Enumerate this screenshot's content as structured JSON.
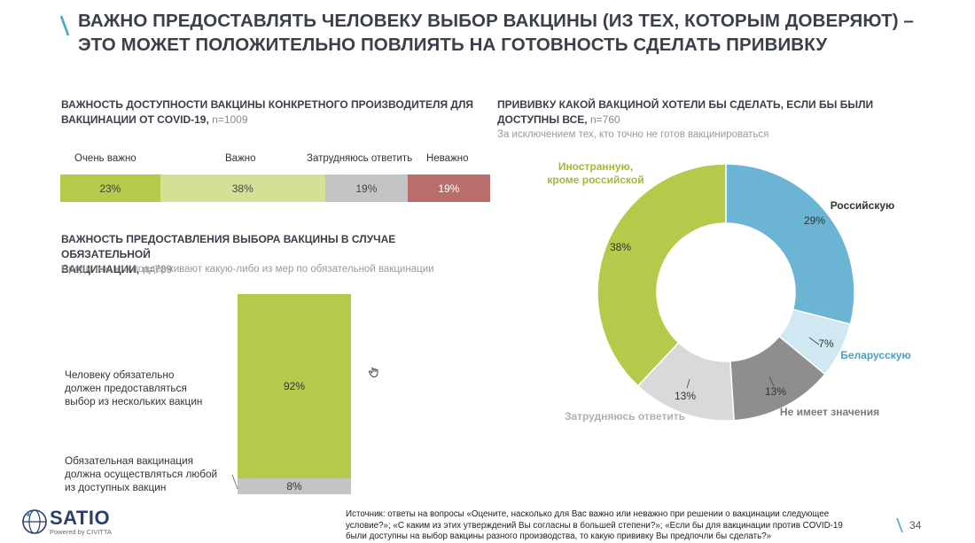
{
  "page": {
    "title_line1": "ВАЖНО ПРЕДОСТАВЛЯТЬ ЧЕЛОВЕКУ ВЫБОР ВАКЦИНЫ (ИЗ ТЕХ, КОТОРЫМ ДОВЕРЯЮТ) –",
    "title_line2": "ЭТО МОЖЕТ ПОЛОЖИТЕЛЬНО ПОВЛИЯТЬ НА ГОТОВНОСТЬ СДЕЛАТЬ ПРИВИВКУ",
    "accent_color": "#4aa6c8",
    "source_line1": "Источник: ответы на вопросы «Оцените, насколько для Вас важно или неважно при решении о вакцинации следующее",
    "source_line2": "условие?»; «С каким из этих утверждений Вы согласны в большей степени?»; «Если бы для вакцинации против COVID-19",
    "source_line3": "были доступны на выбор вакцины разного производства, то какую прививку Вы предпочли бы сделать?»",
    "page_number": "34",
    "logo_text": "SATIO",
    "logo_sub": "Powered by CIVITTA",
    "hand_icon": "hand-pointer-icon"
  },
  "chart_data": [
    {
      "type": "bar",
      "orientation": "horizontal-stacked",
      "title": "ВАЖНОСТЬ ДОСТУПНОСТИ ВАКЦИНЫ КОНКРЕТНОГО ПРОИЗВОДИТЕЛЯ ДЛЯ ВАКЦИНАЦИИ ОТ COVID-19,",
      "title_line1": "ВАЖНОСТЬ ДОСТУПНОСТИ ВАКЦИНЫ КОНКРЕТНОГО ПРОИЗВОДИТЕЛЯ ДЛЯ",
      "title_line2": "ВАКЦИНАЦИИ ОТ COVID-19,",
      "n": "n=1009",
      "categories": [
        "Очень важно",
        "Важно",
        "Затрудняюсь ответить",
        "Неважно"
      ],
      "values": [
        23,
        38,
        19,
        19
      ],
      "value_labels": [
        "23%",
        "38%",
        "19%",
        "19%"
      ],
      "colors": [
        "#b5c94a",
        "#d3e096",
        "#c4c4c4",
        "#b86f6c"
      ]
    },
    {
      "type": "bar",
      "orientation": "vertical-stacked",
      "title": "ВАЖНОСТЬ ПРЕДОСТАВЛЕНИЯ ВЫБОРА ВАКЦИНЫ В СЛУЧАЕ ОБЯЗАТЕЛЬНОЙ ВАКЦИНАЦИИ,",
      "title_line1": "ВАЖНОСТЬ ПРЕДОСТАВЛЕНИЯ ВЫБОРА ВАКЦИНЫ В СЛУЧАЕ ОБЯЗАТЕЛЬНОЙ",
      "title_line2": "ВАКЦИНАЦИИ,",
      "n": "n=789",
      "subtitle": "Среди тех, кто поддерживают какую-либо из мер по обязательной вакцинации",
      "categories": [
        "Человеку обязательно должен предоставляться выбор из нескольких вакцин",
        "Обязательная вакцинация должна осуществляться любой из доступных вакцин"
      ],
      "category_lines": [
        [
          "Человеку обязательно",
          "должен предоставляться",
          "выбор из нескольких вакцин"
        ],
        [
          "Обязательная вакцинация",
          "должна осуществляться любой",
          "из доступных вакцин"
        ]
      ],
      "values": [
        92,
        8
      ],
      "value_labels": [
        "92%",
        "8%"
      ],
      "colors": [
        "#b5c94a",
        "#c4c4c4"
      ]
    },
    {
      "type": "pie",
      "variant": "donut",
      "title": "ПРИВИВКУ КАКОЙ ВАКЦИНОЙ ХОТЕЛИ БЫ СДЕЛАТЬ, ЕСЛИ БЫ БЫЛИ ДОСТУПНЫ ВСЕ,",
      "title_line1": "ПРИВИВКУ КАКОЙ ВАКЦИНОЙ ХОТЕЛИ БЫ СДЕЛАТЬ, ЕСЛИ БЫ БЫЛИ",
      "title_line2": "ДОСТУПНЫ ВСЕ,",
      "n": "n=760",
      "subtitle": "За исключением тех, кто точно не готов вакцинироваться",
      "slices": [
        {
          "label": "Российскую",
          "value": 29,
          "value_label": "29%",
          "color": "#6cb4d3",
          "label_color": "#333333"
        },
        {
          "label": "Беларусскую",
          "value": 7,
          "value_label": "7%",
          "color": "#cfe8f2",
          "label_color": "#4a9fc7"
        },
        {
          "label": "Не имеет значения",
          "value": 13,
          "value_label": "13%",
          "color": "#8e8e8e",
          "label_color": "#7a7a7a"
        },
        {
          "label": "Затрудняюсь ответить",
          "value": 13,
          "value_label": "13%",
          "color": "#d9d9d9",
          "label_color": "#b0b0b0"
        },
        {
          "label": "Иностранную, кроме российской",
          "label_lines": [
            "Иностранную,",
            "кроме российской"
          ],
          "value": 38,
          "value_label": "38%",
          "color": "#b5c94a",
          "label_color": "#a3b83a"
        }
      ]
    }
  ]
}
